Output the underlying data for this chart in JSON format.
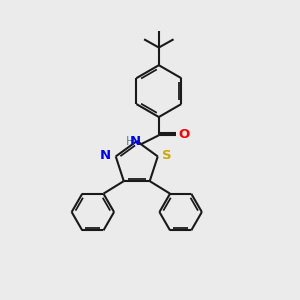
{
  "background_color": "#ebebeb",
  "bond_color": "#1a1a1a",
  "bond_width": 1.5,
  "N_color": "#0000ff",
  "S_color": "#ccaa00",
  "O_color": "#ff0000",
  "H_color": "#4a9090",
  "figsize": [
    3.0,
    3.0
  ],
  "dpi": 100,
  "xlim": [
    0,
    10
  ],
  "ylim": [
    0,
    10
  ]
}
